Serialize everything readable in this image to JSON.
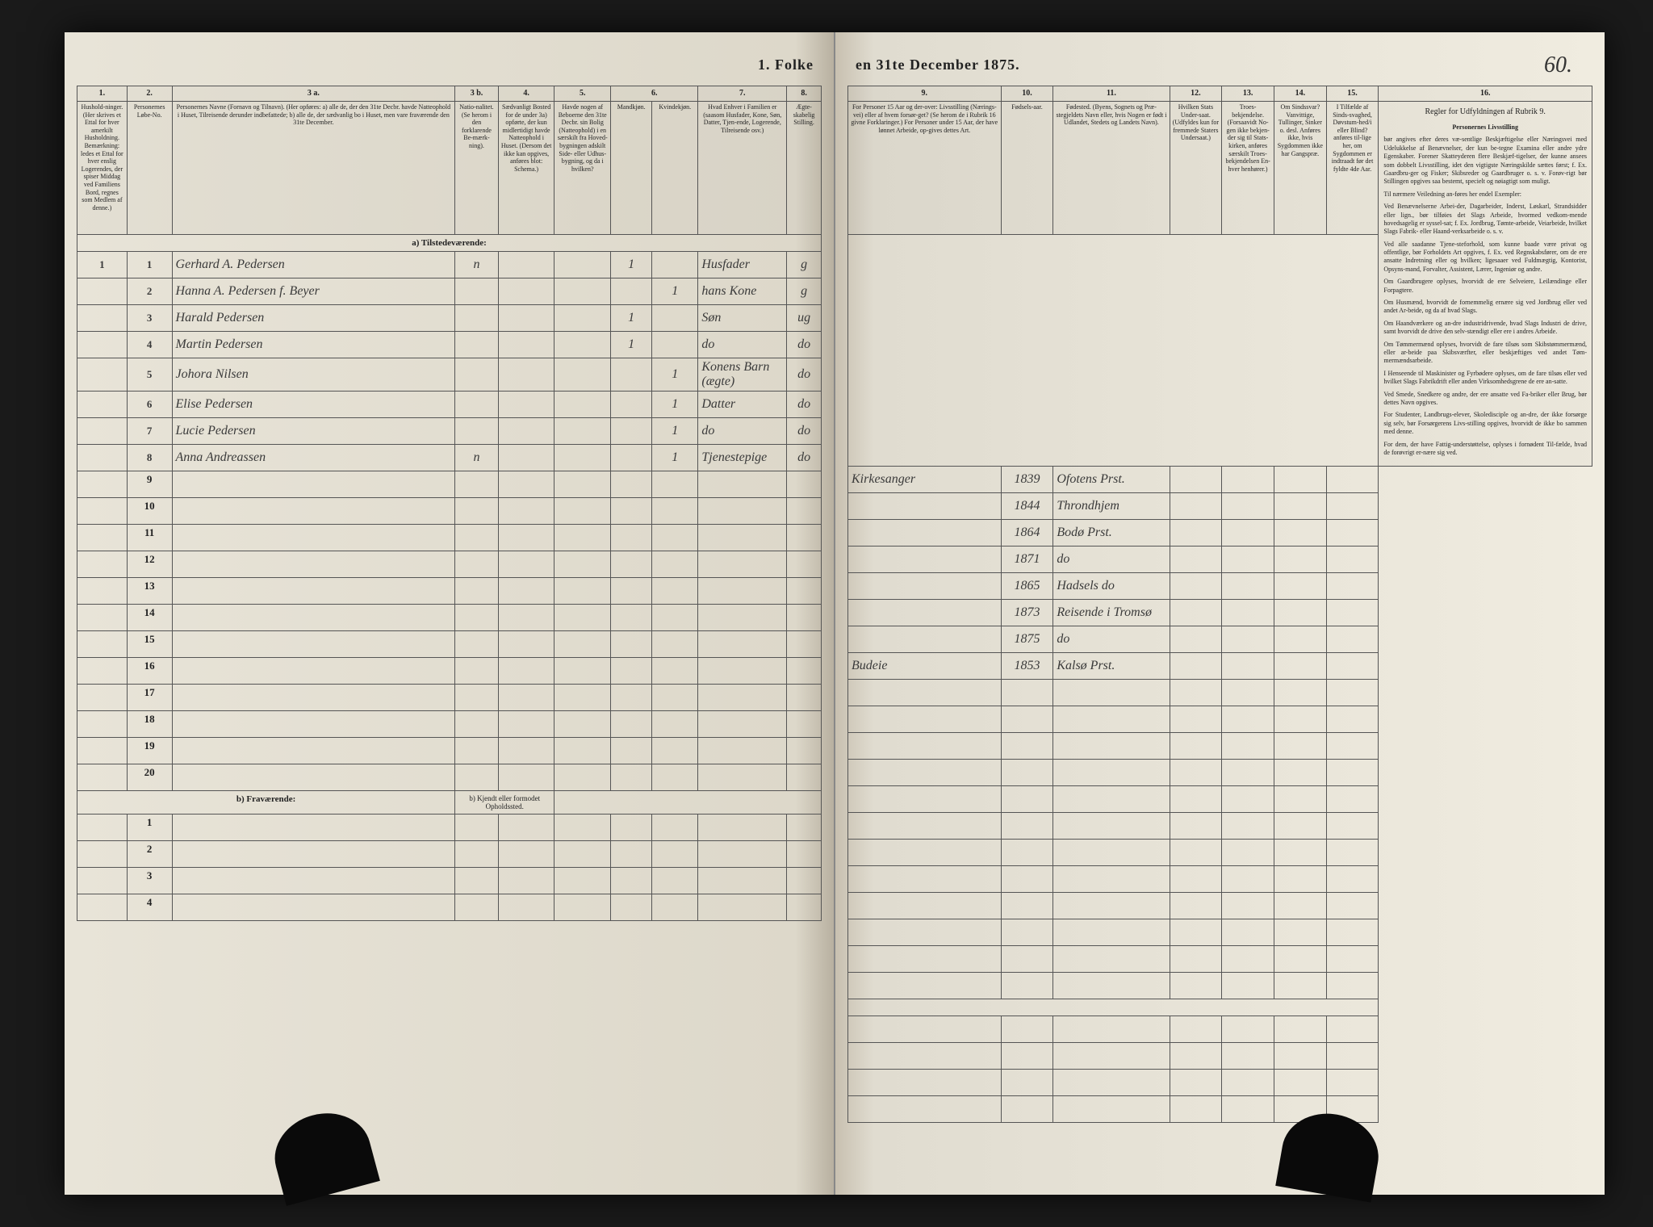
{
  "page_number": "60.",
  "header_title_left": "1. Folke",
  "header_title_right": "en 31te December 1875.",
  "columns_left": {
    "c1": "1.",
    "c2": "2.",
    "c3a": "3 a.",
    "c3b": "3 b.",
    "c4": "4.",
    "c5": "5.",
    "c6": "6.",
    "c7": "7.",
    "c8": "8."
  },
  "columns_right": {
    "c9": "9.",
    "c10": "10.",
    "c11": "11.",
    "c12": "12.",
    "c13": "13.",
    "c14": "14.",
    "c15": "15.",
    "c16": "16."
  },
  "headers_left": {
    "h1": "Hushold-ninger. (Her skrives et Ettal for hver amerkilt Husholdning. Bemærkning: ledes et Ettal for hver enslig Logerendes, der spiser Middag ved Familiens Bord, regnes som Medlem af denne.)",
    "h2": "Personernes Løbe-No.",
    "h3a": "Personernes Navne (Fornavn og Tilnavn). (Her opføres: a) alle de, der den 31te Decbr. havde Natteophold i Huset, Tilreisende derunder indbefattede; b) alle de, der sædvanlig bo i Huset, men vare fraværende den 31te December.",
    "h3b": "Natio-nalitet. (Se herom i den forklarende Be-mærk-ning).",
    "h4": "Sædvanligt Bosted for de under 3a) opførte, der kun midlertidigt havde Natteophold i Huset. (Dersom det ikke kan opgives, anføres blot: Schema.)",
    "h5": "Havde nogen af Beboerne den 31te Decbr. sin Bolig (Natteophold) i en særskilt fra Hoved-bygningen adskilt Side- eller Udhus-bygning, og da i hvilken?",
    "h6": "Kjøn.",
    "h7": "Hvad Enhver i Familien er (saasom Husfader, Kone, Søn, Datter, Tjen-ende, Logerende, Tilreisende osv.)",
    "h8": "Ægte-skabelig Stilling."
  },
  "headers_right": {
    "h9": "For Personer 15 Aar og der-over: Livsstilling (Nærings-vei) eller af hvem forsør-get? (Se herom de i Rubrik 16 givne Forklaringer.) For Personer under 15 Aar, der have lønnet Arbeide, op-gives dettes Art.",
    "h10": "Fødsels-aar.",
    "h11": "Fødested. (Byens, Sognets og Præ-stegjeldets Navn eller, hvis Nogen er født i Udlandet, Stedets og Landets Navn).",
    "h12": "Hvilken Stats Under-saat. (Udfyldes kun for fremmede Staters Undersaat.)",
    "h13": "Troes-bekjendelse. (Forsaavidt No-gen ikke bekjen-der sig til Stats-kirken, anføres særskilt Troes-bekjendelsen En-hver henhører.)",
    "h14": "Om Sindssvar? Vanvittige, Tullinger, Sinker o. desl. Anføres ikke, hvis Sygdommen ikke har Gangspræ.",
    "h15": "I Tilfælde af Sinds-svaghed, Døvstum-hed/i eller Blind? anføres til-lige her, om Sygdommen er indtraadt før det fyldte 4de Aar.",
    "h16": "Regler for Udfyldningen af Rubrik 9."
  },
  "subheaders": {
    "h6a": "Mandkjøn.",
    "h6b": "Kvindekjøn."
  },
  "section_a": "a) Tilstedeværende:",
  "section_b": "b) Fraværende:",
  "section_b_note": "b) Kjendt eller formodet Opholdssted.",
  "rows": [
    {
      "n": "1",
      "hh": "1",
      "name": "Gerhard A. Pedersen",
      "nat": "n",
      "col5": "",
      "m": "1",
      "f": "",
      "rel": "Husfader",
      "ms": "g",
      "occ": "Kirkesanger",
      "yr": "1839",
      "bp": "Ofotens Prst."
    },
    {
      "n": "2",
      "hh": "",
      "name": "Hanna A. Pedersen f. Beyer",
      "nat": "",
      "col5": "",
      "m": "",
      "f": "1",
      "rel": "hans Kone",
      "ms": "g",
      "occ": "",
      "yr": "1844",
      "bp": "Throndhjem"
    },
    {
      "n": "3",
      "hh": "",
      "name": "Harald Pedersen",
      "nat": "",
      "col5": "",
      "m": "1",
      "f": "",
      "rel": "Søn",
      "ms": "ug",
      "occ": "",
      "yr": "1864",
      "bp": "Bodø Prst."
    },
    {
      "n": "4",
      "hh": "",
      "name": "Martin Pedersen",
      "nat": "",
      "col5": "",
      "m": "1",
      "f": "",
      "rel": "do",
      "ms": "do",
      "occ": "",
      "yr": "1871",
      "bp": "do"
    },
    {
      "n": "5",
      "hh": "",
      "name": "Johora Nilsen",
      "nat": "",
      "col5": "",
      "m": "",
      "f": "1",
      "rel": "Konens Barn (ægte)",
      "ms": "do",
      "occ": "",
      "yr": "1865",
      "bp": "Hadsels do"
    },
    {
      "n": "6",
      "hh": "",
      "name": "Elise Pedersen",
      "nat": "",
      "col5": "",
      "m": "",
      "f": "1",
      "rel": "Datter",
      "ms": "do",
      "occ": "",
      "yr": "1873",
      "bp": "Reisende i Tromsø"
    },
    {
      "n": "7",
      "hh": "",
      "name": "Lucie Pedersen",
      "nat": "",
      "col5": "",
      "m": "",
      "f": "1",
      "rel": "do",
      "ms": "do",
      "occ": "",
      "yr": "1875",
      "bp": "do"
    },
    {
      "n": "8",
      "hh": "",
      "name": "Anna Andreassen",
      "nat": "n",
      "col5": "",
      "m": "",
      "f": "1",
      "rel": "Tjenestepige",
      "ms": "do",
      "occ": "Budeie",
      "yr": "1853",
      "bp": "Kalsø Prst."
    }
  ],
  "empty_a": [
    "9",
    "10",
    "11",
    "12",
    "13",
    "14",
    "15",
    "16",
    "17",
    "18",
    "19",
    "20"
  ],
  "empty_b": [
    "1",
    "2",
    "3",
    "4"
  ],
  "rules_text": {
    "heading": "Personernes Livsstilling",
    "p1": "bør angives efter deres væ-sentlige Beskjæftigelse eller Næringsvei med Udelukkelse af Benævnelser, der kun be-tegne Examina eller andre ydre Egenskaber. Forener Skatteyderen flere Beskjæf-tigelser, der kunne ansees som dobbelt Livsstilling, idet den vigtigste Næringskilde sættes først; f. Ex. Gaardbru-ger og Fisker; Skibsreder og Gaardbruger o. s. v. Forøv-rigt bør Stillingen opgives saa bestemt, specielt og nøiagtigt som muligt.",
    "p2": "Til nærmere Veiledning an-føres her endel Exempler:",
    "p3": "Ved Benævnelserne Arbei-der, Dagarbeider, Inderst, Løskarl, Strandsidder eller lign., bør tilføies det Slags Arbeide, hvormed vedkom-mende hovedsagelig er syssel-sat; f. Ex. Jordbrug, Tømte-arbeide, Veiarbeide, hvilket Slags Fabrik- eller Haand-verksarbeide o. s. v.",
    "p4": "Ved alle saadanne Tjene-steforhold, som kunne baade være privat og offentlige, bør Forholdets Art opgives, f. Ex. ved Regnskabsfører, om de ere ansatte Indretning eller og hvilken; ligesaaer ved Fuldmægtig, Kontorist, Opsyns-mand, Forvalter, Assistent, Lærer, Ingeniør og andre.",
    "p5": "Om Gaardbrugere oplyses, hvorvidt de ere Selveiere, Leilændinge eller Forpagtere.",
    "p6": "Om Husmænd, hvorvidt de fornemmelig ernære sig ved Jordbrug eller ved andet Ar-beide, og da af hvad Slags.",
    "p7": "Om Haandværkere og an-dre industridrivende, hvad Slags Industri de drive, samt hvorvidt de drive den selv-stændigt eller ere i andres Arbeide.",
    "p8": "Om Tømmermænd oplyses, hvorvidt de fare tilsøs som Skibstømmermænd, eller ar-beide paa Skibsværfter, eller beskjæftiges ved andet Tøm-mermændsarbeide.",
    "p9": "I Henseende til Maskinister og Fyrbødere oplyses, om de fare tilsøs eller ved hvilket Slags Fabrikdrift eller anden Virksomhedsgrene de ere an-satte.",
    "p10": "Ved Smede, Snedkere og andre, der ere ansatte ved Fa-briker eller Brug, bør dettes Navn opgives.",
    "p11": "For Studenter, Landbrugs-elever, Skoledisciple og an-dre, der ikke forsørge sig selv, bør Forsørgerens Livs-stilling opgives, hvorvidt de ikke bo sammen med denne.",
    "p12": "For dem, der have Fattig-understøttelse, oplyses i fornødent Til-fælde, hvad de forøvrigt er-nære sig ved."
  }
}
